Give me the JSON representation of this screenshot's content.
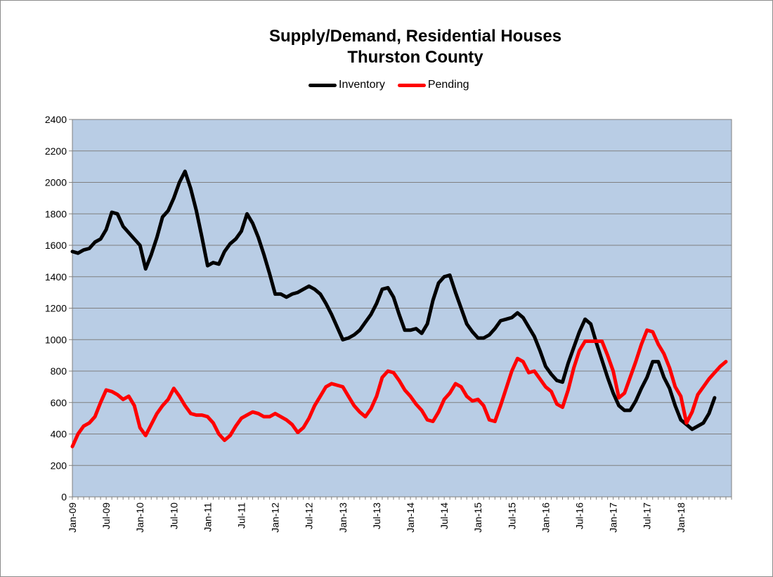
{
  "chart_data": {
    "type": "line",
    "title_lines": [
      "Supply/Demand, Residential Houses",
      "Thurston County"
    ],
    "xlabel": "",
    "ylabel": "",
    "ylim": [
      0,
      2400
    ],
    "yticks": [
      0,
      200,
      400,
      600,
      800,
      1000,
      1200,
      1400,
      1600,
      1800,
      2000,
      2200,
      2400
    ],
    "xlim": [
      "2009-01",
      "2018-10"
    ],
    "x_tick_labels": [
      "Jan-09",
      "Jul-09",
      "Jan-10",
      "Jul-10",
      "Jan-11",
      "Jul-11",
      "Jan-12",
      "Jul-12",
      "Jan-13",
      "Jul-13",
      "Jan-14",
      "Jul-14",
      "Jan-15",
      "Jul-15",
      "Jan-16",
      "Jul-16",
      "Jan-17",
      "Jul-17",
      "Jan-18"
    ],
    "grid": true,
    "legend_position": "top",
    "plot_background": "#b9cde5",
    "series": [
      {
        "name": "Inventory",
        "color": "#000000",
        "points": [
          [
            "2009-01",
            1560
          ],
          [
            "2009-02",
            1550
          ],
          [
            "2009-03",
            1570
          ],
          [
            "2009-04",
            1580
          ],
          [
            "2009-05",
            1620
          ],
          [
            "2009-06",
            1640
          ],
          [
            "2009-07",
            1700
          ],
          [
            "2009-08",
            1810
          ],
          [
            "2009-09",
            1800
          ],
          [
            "2009-10",
            1720
          ],
          [
            "2009-11",
            1680
          ],
          [
            "2009-12",
            1640
          ],
          [
            "2010-01",
            1600
          ],
          [
            "2010-02",
            1450
          ],
          [
            "2010-03",
            1540
          ],
          [
            "2010-04",
            1650
          ],
          [
            "2010-05",
            1780
          ],
          [
            "2010-06",
            1820
          ],
          [
            "2010-07",
            1900
          ],
          [
            "2010-08",
            2000
          ],
          [
            "2010-09",
            2070
          ],
          [
            "2010-10",
            1960
          ],
          [
            "2010-11",
            1820
          ],
          [
            "2010-12",
            1650
          ],
          [
            "2011-01",
            1470
          ],
          [
            "2011-02",
            1490
          ],
          [
            "2011-03",
            1480
          ],
          [
            "2011-04",
            1560
          ],
          [
            "2011-05",
            1610
          ],
          [
            "2011-06",
            1640
          ],
          [
            "2011-07",
            1690
          ],
          [
            "2011-08",
            1800
          ],
          [
            "2011-09",
            1740
          ],
          [
            "2011-10",
            1650
          ],
          [
            "2011-11",
            1540
          ],
          [
            "2011-12",
            1420
          ],
          [
            "2012-01",
            1290
          ],
          [
            "2012-02",
            1290
          ],
          [
            "2012-03",
            1270
          ],
          [
            "2012-04",
            1290
          ],
          [
            "2012-05",
            1300
          ],
          [
            "2012-06",
            1320
          ],
          [
            "2012-07",
            1340
          ],
          [
            "2012-08",
            1320
          ],
          [
            "2012-09",
            1290
          ],
          [
            "2012-10",
            1230
          ],
          [
            "2012-11",
            1160
          ],
          [
            "2012-12",
            1080
          ],
          [
            "2013-01",
            1000
          ],
          [
            "2013-02",
            1010
          ],
          [
            "2013-03",
            1030
          ],
          [
            "2013-04",
            1060
          ],
          [
            "2013-05",
            1110
          ],
          [
            "2013-06",
            1160
          ],
          [
            "2013-07",
            1230
          ],
          [
            "2013-08",
            1320
          ],
          [
            "2013-09",
            1330
          ],
          [
            "2013-10",
            1270
          ],
          [
            "2013-11",
            1160
          ],
          [
            "2013-12",
            1060
          ],
          [
            "2014-01",
            1060
          ],
          [
            "2014-02",
            1070
          ],
          [
            "2014-03",
            1040
          ],
          [
            "2014-04",
            1100
          ],
          [
            "2014-05",
            1250
          ],
          [
            "2014-06",
            1360
          ],
          [
            "2014-07",
            1400
          ],
          [
            "2014-08",
            1410
          ],
          [
            "2014-09",
            1300
          ],
          [
            "2014-10",
            1200
          ],
          [
            "2014-11",
            1100
          ],
          [
            "2014-12",
            1050
          ],
          [
            "2015-01",
            1010
          ],
          [
            "2015-02",
            1010
          ],
          [
            "2015-03",
            1030
          ],
          [
            "2015-04",
            1070
          ],
          [
            "2015-05",
            1120
          ],
          [
            "2015-06",
            1130
          ],
          [
            "2015-07",
            1140
          ],
          [
            "2015-08",
            1170
          ],
          [
            "2015-09",
            1140
          ],
          [
            "2015-10",
            1080
          ],
          [
            "2015-11",
            1020
          ],
          [
            "2015-12",
            930
          ],
          [
            "2016-01",
            830
          ],
          [
            "2016-02",
            780
          ],
          [
            "2016-03",
            740
          ],
          [
            "2016-04",
            730
          ],
          [
            "2016-05",
            850
          ],
          [
            "2016-06",
            950
          ],
          [
            "2016-07",
            1050
          ],
          [
            "2016-08",
            1130
          ],
          [
            "2016-09",
            1100
          ],
          [
            "2016-10",
            980
          ],
          [
            "2016-11",
            870
          ],
          [
            "2016-12",
            760
          ],
          [
            "2017-01",
            660
          ],
          [
            "2017-02",
            580
          ],
          [
            "2017-03",
            550
          ],
          [
            "2017-04",
            550
          ],
          [
            "2017-05",
            610
          ],
          [
            "2017-06",
            690
          ],
          [
            "2017-07",
            760
          ],
          [
            "2017-08",
            860
          ],
          [
            "2017-09",
            860
          ],
          [
            "2017-10",
            760
          ],
          [
            "2017-11",
            690
          ],
          [
            "2017-12",
            580
          ],
          [
            "2018-01",
            490
          ],
          [
            "2018-02",
            460
          ],
          [
            "2018-03",
            430
          ],
          [
            "2018-04",
            450
          ],
          [
            "2018-05",
            470
          ],
          [
            "2018-06",
            530
          ],
          [
            "2018-07",
            630
          ]
        ]
      },
      {
        "name": "Pending",
        "color": "#ff0000",
        "points": [
          [
            "2009-01",
            320
          ],
          [
            "2009-02",
            400
          ],
          [
            "2009-03",
            450
          ],
          [
            "2009-04",
            470
          ],
          [
            "2009-05",
            510
          ],
          [
            "2009-06",
            600
          ],
          [
            "2009-07",
            680
          ],
          [
            "2009-08",
            670
          ],
          [
            "2009-09",
            650
          ],
          [
            "2009-10",
            620
          ],
          [
            "2009-11",
            640
          ],
          [
            "2009-12",
            580
          ],
          [
            "2010-01",
            440
          ],
          [
            "2010-02",
            390
          ],
          [
            "2010-03",
            460
          ],
          [
            "2010-04",
            530
          ],
          [
            "2010-05",
            580
          ],
          [
            "2010-06",
            620
          ],
          [
            "2010-07",
            690
          ],
          [
            "2010-08",
            640
          ],
          [
            "2010-09",
            580
          ],
          [
            "2010-10",
            530
          ],
          [
            "2010-11",
            520
          ],
          [
            "2010-12",
            520
          ],
          [
            "2011-01",
            510
          ],
          [
            "2011-02",
            470
          ],
          [
            "2011-03",
            400
          ],
          [
            "2011-04",
            360
          ],
          [
            "2011-05",
            390
          ],
          [
            "2011-06",
            450
          ],
          [
            "2011-07",
            500
          ],
          [
            "2011-08",
            520
          ],
          [
            "2011-09",
            540
          ],
          [
            "2011-10",
            530
          ],
          [
            "2011-11",
            510
          ],
          [
            "2011-12",
            510
          ],
          [
            "2012-01",
            530
          ],
          [
            "2012-02",
            510
          ],
          [
            "2012-03",
            490
          ],
          [
            "2012-04",
            460
          ],
          [
            "2012-05",
            410
          ],
          [
            "2012-06",
            440
          ],
          [
            "2012-07",
            500
          ],
          [
            "2012-08",
            580
          ],
          [
            "2012-09",
            640
          ],
          [
            "2012-10",
            700
          ],
          [
            "2012-11",
            720
          ],
          [
            "2012-12",
            710
          ],
          [
            "2013-01",
            700
          ],
          [
            "2013-02",
            640
          ],
          [
            "2013-03",
            580
          ],
          [
            "2013-04",
            540
          ],
          [
            "2013-05",
            510
          ],
          [
            "2013-06",
            560
          ],
          [
            "2013-07",
            640
          ],
          [
            "2013-08",
            760
          ],
          [
            "2013-09",
            800
          ],
          [
            "2013-10",
            790
          ],
          [
            "2013-11",
            740
          ],
          [
            "2013-12",
            680
          ],
          [
            "2014-01",
            640
          ],
          [
            "2014-02",
            590
          ],
          [
            "2014-03",
            550
          ],
          [
            "2014-04",
            490
          ],
          [
            "2014-05",
            480
          ],
          [
            "2014-06",
            540
          ],
          [
            "2014-07",
            620
          ],
          [
            "2014-08",
            660
          ],
          [
            "2014-09",
            720
          ],
          [
            "2014-10",
            700
          ],
          [
            "2014-11",
            640
          ],
          [
            "2014-12",
            610
          ],
          [
            "2015-01",
            620
          ],
          [
            "2015-02",
            580
          ],
          [
            "2015-03",
            490
          ],
          [
            "2015-04",
            480
          ],
          [
            "2015-05",
            580
          ],
          [
            "2015-06",
            690
          ],
          [
            "2015-07",
            800
          ],
          [
            "2015-08",
            880
          ],
          [
            "2015-09",
            860
          ],
          [
            "2015-10",
            790
          ],
          [
            "2015-11",
            800
          ],
          [
            "2015-12",
            750
          ],
          [
            "2016-01",
            700
          ],
          [
            "2016-02",
            670
          ],
          [
            "2016-03",
            590
          ],
          [
            "2016-04",
            570
          ],
          [
            "2016-05",
            680
          ],
          [
            "2016-06",
            820
          ],
          [
            "2016-07",
            930
          ],
          [
            "2016-08",
            990
          ],
          [
            "2016-09",
            990
          ],
          [
            "2016-10",
            990
          ],
          [
            "2016-11",
            990
          ],
          [
            "2016-12",
            900
          ],
          [
            "2017-01",
            800
          ],
          [
            "2017-02",
            630
          ],
          [
            "2017-03",
            660
          ],
          [
            "2017-04",
            760
          ],
          [
            "2017-05",
            860
          ],
          [
            "2017-06",
            970
          ],
          [
            "2017-07",
            1060
          ],
          [
            "2017-08",
            1050
          ],
          [
            "2017-09",
            970
          ],
          [
            "2017-10",
            910
          ],
          [
            "2017-11",
            820
          ],
          [
            "2017-12",
            700
          ],
          [
            "2018-01",
            640
          ],
          [
            "2018-02",
            470
          ],
          [
            "2018-03",
            540
          ],
          [
            "2018-04",
            650
          ],
          [
            "2018-05",
            700
          ],
          [
            "2018-06",
            750
          ],
          [
            "2018-07",
            790
          ],
          [
            "2018-08",
            830
          ],
          [
            "2018-09",
            860
          ]
        ]
      }
    ]
  }
}
